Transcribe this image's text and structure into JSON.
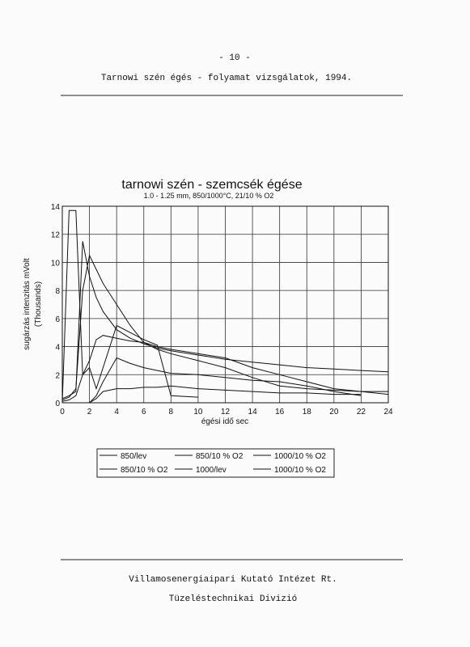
{
  "header": {
    "page_number": "- 10 -",
    "title": "Tarnowi szén égés - folyamat vizsgálatok, 1994."
  },
  "chart_data": {
    "type": "line",
    "title": "tarnowi szén - szemcsék égése",
    "subtitle": "1.0 - 1.25 mm, 850/1000°C, 21/10 % O2",
    "y_label": "sugárzás intenzitás mVolt",
    "y_label_unit": "(Thousands)",
    "x_label": "égési idő sec",
    "x": [
      0,
      0.5,
      1,
      1.5,
      2,
      2.5,
      3,
      4,
      5,
      6,
      7,
      8,
      10,
      12,
      14,
      16,
      18,
      20,
      22,
      24
    ],
    "series": [
      {
        "name": "850/lev",
        "color": "#111111",
        "values": [
          0.3,
          0.5,
          0.8,
          11.5,
          9,
          7.5,
          6.5,
          5.2,
          4.6,
          4.2,
          3.9,
          3.7,
          3.4,
          3.1,
          2.9,
          2.7,
          2.5,
          2.4,
          2.3,
          2.2
        ]
      },
      {
        "name": "850/10 % O2",
        "color": "#111111",
        "values": [
          0.2,
          0.4,
          1,
          8,
          10.5,
          9.5,
          8.5,
          7,
          5.5,
          4.3,
          3.8,
          3.5,
          3,
          2.5,
          1.8,
          1.2,
          1,
          0.9,
          0.8,
          0.8
        ]
      },
      {
        "name": "850/10 % O2",
        "color": "#111111",
        "values": [
          0,
          13.7,
          13.7,
          2,
          2.5,
          1,
          2.5,
          5.5,
          5,
          4.5,
          4.1,
          0.5,
          0.4,
          null,
          null,
          null,
          null,
          null,
          null,
          null
        ]
      },
      {
        "name": "1000/lev",
        "color": "#111111",
        "values": [
          0.1,
          0.2,
          0.5,
          2,
          3,
          4.5,
          4.8,
          4.6,
          4.4,
          4.3,
          4,
          3.8,
          3.5,
          3.2,
          2.5,
          2,
          1.5,
          1,
          0.8,
          0.6
        ]
      },
      {
        "name": "1000/10 % O2",
        "color": "#111111",
        "values": [
          null,
          null,
          null,
          null,
          0,
          0.5,
          1.5,
          3.2,
          2.8,
          2.5,
          2.3,
          2.1,
          2,
          1.8,
          1.6,
          1.5,
          1.2,
          0.8,
          0.5,
          null
        ]
      },
      {
        "name": "1000/10 % O2",
        "color": "#111111",
        "values": [
          null,
          null,
          null,
          null,
          0,
          0.3,
          0.8,
          1,
          1,
          1.1,
          1.1,
          1.2,
          1,
          0.9,
          0.8,
          0.7,
          0.7,
          0.6,
          0.6,
          null
        ]
      }
    ],
    "xlim": [
      0,
      24
    ],
    "xticks": [
      0,
      2,
      4,
      6,
      8,
      10,
      12,
      14,
      16,
      18,
      20,
      22,
      24
    ],
    "ylim": [
      0,
      14
    ],
    "yticks": [
      0,
      2,
      4,
      6,
      8,
      10,
      12,
      14
    ],
    "grid": true
  },
  "footer": {
    "line1": "Villamosenergiaipari Kutató Intézet Rt.",
    "line2": "Tüzeléstechnikai Divizió"
  }
}
